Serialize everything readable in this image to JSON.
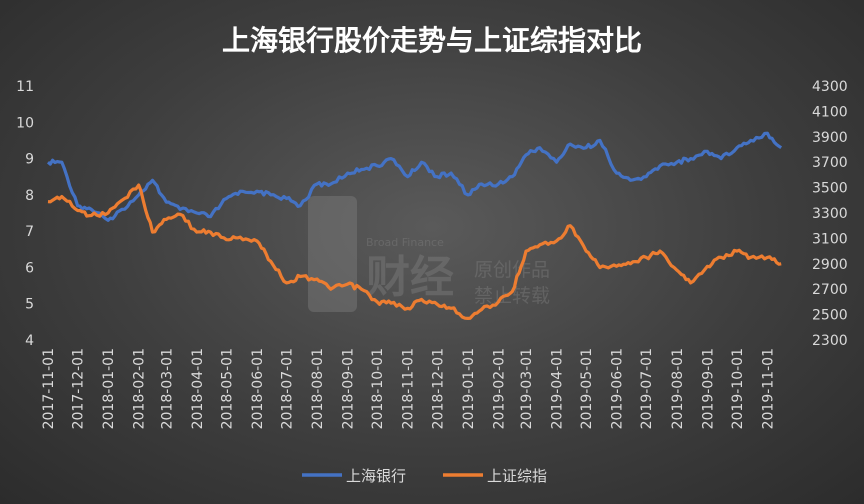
{
  "chart_data": {
    "type": "line",
    "title": "上海银行股价走势与上证综指对比",
    "xlabel": "",
    "ylabel": "",
    "x_ticks": [
      "2017-11-01",
      "2017-12-01",
      "2018-01-01",
      "2018-02-01",
      "2018-03-01",
      "2018-04-01",
      "2018-05-01",
      "2018-06-01",
      "2018-07-01",
      "2018-08-01",
      "2018-09-01",
      "2018-10-01",
      "2018-11-01",
      "2018-12-01",
      "2019-01-01",
      "2019-02-01",
      "2019-03-01",
      "2019-04-01",
      "2019-05-01",
      "2019-06-01",
      "2019-07-01",
      "2019-08-01",
      "2019-09-01",
      "2019-10-01",
      "2019-11-01"
    ],
    "y_left": {
      "lim": [
        4,
        11
      ],
      "ticks": [
        "4",
        "5",
        "6",
        "7",
        "8",
        "9",
        "10",
        "11"
      ]
    },
    "y_right": {
      "lim": [
        2300,
        4300
      ],
      "ticks": [
        "2300",
        "2500",
        "2700",
        "2900",
        "3100",
        "3300",
        "3500",
        "3700",
        "3900",
        "4100",
        "4300"
      ]
    },
    "grid": false,
    "legend_position": "bottom",
    "series": [
      {
        "name": "上海银行",
        "axis": "left",
        "color": "#4472C4",
        "x": [
          "2017-11-01",
          "2017-11-15",
          "2017-12-01",
          "2017-12-15",
          "2018-01-01",
          "2018-01-15",
          "2018-02-01",
          "2018-02-15",
          "2018-03-01",
          "2018-03-15",
          "2018-04-01",
          "2018-04-15",
          "2018-05-01",
          "2018-05-15",
          "2018-06-01",
          "2018-06-15",
          "2018-07-01",
          "2018-07-15",
          "2018-08-01",
          "2018-08-15",
          "2018-09-01",
          "2018-09-15",
          "2018-10-01",
          "2018-10-15",
          "2018-11-01",
          "2018-11-15",
          "2018-12-01",
          "2018-12-15",
          "2019-01-01",
          "2019-01-15",
          "2019-02-01",
          "2019-02-15",
          "2019-03-01",
          "2019-03-15",
          "2019-04-01",
          "2019-04-15",
          "2019-05-01",
          "2019-05-15",
          "2019-06-01",
          "2019-06-15",
          "2019-07-01",
          "2019-07-15",
          "2019-08-01",
          "2019-08-15",
          "2019-09-01",
          "2019-09-15",
          "2019-10-01",
          "2019-10-15",
          "2019-11-01",
          "2019-11-15"
        ],
        "values": [
          8.9,
          8.9,
          7.7,
          7.6,
          7.3,
          7.6,
          8.0,
          8.4,
          7.8,
          7.6,
          7.5,
          7.4,
          7.9,
          8.1,
          8.1,
          8.0,
          7.9,
          7.7,
          8.3,
          8.3,
          8.6,
          8.7,
          8.8,
          9.0,
          8.5,
          8.9,
          8.5,
          8.6,
          8.0,
          8.3,
          8.3,
          8.5,
          9.1,
          9.3,
          8.9,
          9.4,
          9.3,
          9.5,
          8.6,
          8.4,
          8.5,
          8.8,
          8.9,
          9.0,
          9.2,
          9.0,
          9.3,
          9.5,
          9.7,
          9.3
        ]
      },
      {
        "name": "上证综指",
        "axis": "right",
        "color": "#ED7D31",
        "x": [
          "2017-11-01",
          "2017-11-15",
          "2017-12-01",
          "2017-12-15",
          "2018-01-01",
          "2018-01-15",
          "2018-02-01",
          "2018-02-15",
          "2018-03-01",
          "2018-03-15",
          "2018-04-01",
          "2018-04-15",
          "2018-05-01",
          "2018-05-15",
          "2018-06-01",
          "2018-06-15",
          "2018-07-01",
          "2018-07-15",
          "2018-08-01",
          "2018-08-15",
          "2018-09-01",
          "2018-09-15",
          "2018-10-01",
          "2018-10-15",
          "2018-11-01",
          "2018-11-15",
          "2018-12-01",
          "2018-12-15",
          "2019-01-01",
          "2019-01-15",
          "2019-02-01",
          "2019-02-15",
          "2019-03-01",
          "2019-03-15",
          "2019-04-01",
          "2019-04-15",
          "2019-05-01",
          "2019-05-15",
          "2019-06-01",
          "2019-06-15",
          "2019-07-01",
          "2019-07-15",
          "2019-08-01",
          "2019-08-15",
          "2019-09-01",
          "2019-09-15",
          "2019-10-01",
          "2019-10-15",
          "2019-11-01",
          "2019-11-15"
        ],
        "values": [
          3390,
          3430,
          3320,
          3280,
          3300,
          3400,
          3520,
          3150,
          3250,
          3290,
          3150,
          3150,
          3090,
          3110,
          3080,
          2920,
          2750,
          2800,
          2780,
          2700,
          2740,
          2700,
          2600,
          2590,
          2550,
          2620,
          2580,
          2550,
          2470,
          2540,
          2600,
          2680,
          3000,
          3050,
          3080,
          3200,
          3000,
          2870,
          2880,
          2900,
          2950,
          3000,
          2850,
          2750,
          2880,
          2950,
          3000,
          2950,
          2950,
          2900
        ]
      }
    ]
  },
  "watermark": {
    "brand_en": "Broad Finance",
    "brand_cn": "财经",
    "line1": "原创作品",
    "line2": "禁止转载"
  }
}
